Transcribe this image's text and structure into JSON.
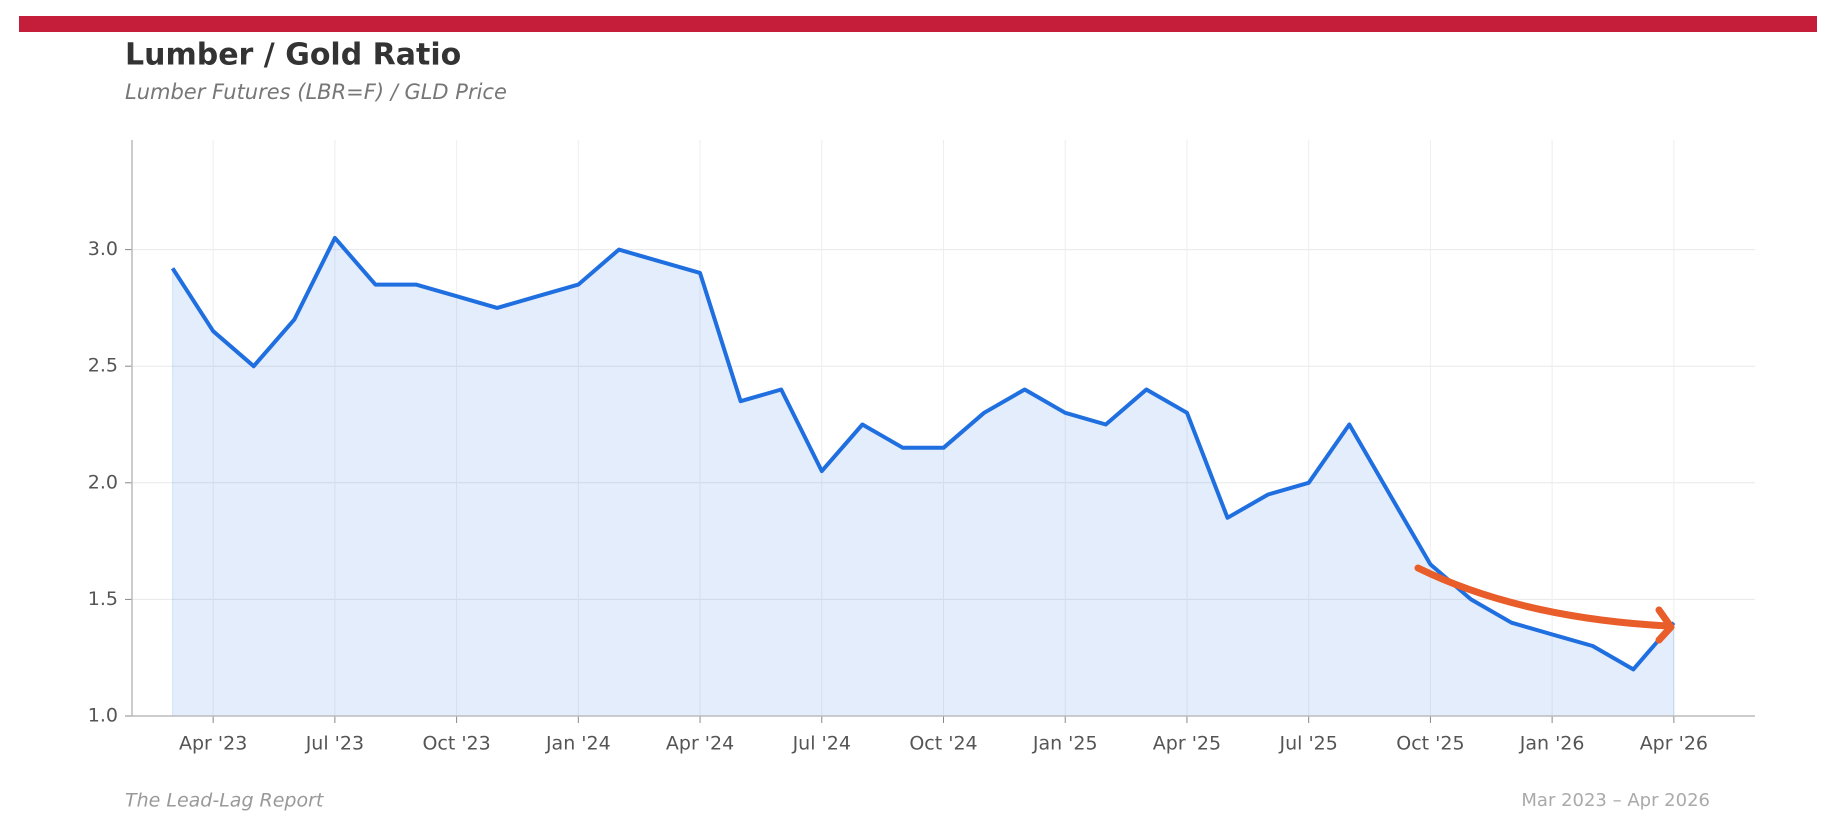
{
  "chart_data": {
    "type": "line",
    "title": "Lumber / Gold Ratio",
    "subtitle": "Lumber Futures (LBR=F) / GLD Price",
    "source": "The Lead-Lag Report",
    "date_range": "Mar 2023 – Apr 2026",
    "x": [
      "2023-03",
      "2023-04",
      "2023-05",
      "2023-06",
      "2023-07",
      "2023-08",
      "2023-09",
      "2023-10",
      "2023-11",
      "2023-12",
      "2024-01",
      "2024-02",
      "2024-03",
      "2024-04",
      "2024-05",
      "2024-06",
      "2024-07",
      "2024-08",
      "2024-09",
      "2024-10",
      "2024-11",
      "2024-12",
      "2025-01",
      "2025-02",
      "2025-03",
      "2025-04",
      "2025-05",
      "2025-06",
      "2025-07",
      "2025-08",
      "2025-09",
      "2025-10",
      "2025-11",
      "2025-12",
      "2026-01",
      "2026-02",
      "2026-03",
      "2026-04"
    ],
    "series": [
      {
        "name": "Lumber / Gold Ratio",
        "color": "#1f6fe0",
        "values": [
          2.92,
          2.65,
          2.5,
          2.7,
          3.05,
          2.85,
          2.85,
          2.8,
          2.75,
          2.8,
          2.85,
          3.0,
          2.95,
          2.9,
          2.35,
          2.4,
          2.05,
          2.25,
          2.15,
          2.15,
          2.3,
          2.4,
          2.3,
          2.25,
          2.4,
          2.3,
          1.85,
          1.95,
          2.0,
          2.25,
          1.95,
          1.65,
          1.5,
          1.4,
          1.35,
          1.3,
          1.2,
          1.4
        ]
      }
    ],
    "xlim": [
      "2023-02",
      "2026-06"
    ],
    "xticks": [
      {
        "value": "2023-04",
        "label": "Apr '23"
      },
      {
        "value": "2023-07",
        "label": "Jul '23"
      },
      {
        "value": "2023-10",
        "label": "Oct '23"
      },
      {
        "value": "2024-01",
        "label": "Jan '24"
      },
      {
        "value": "2024-04",
        "label": "Apr '24"
      },
      {
        "value": "2024-07",
        "label": "Jul '24"
      },
      {
        "value": "2024-10",
        "label": "Oct '24"
      },
      {
        "value": "2025-01",
        "label": "Jan '25"
      },
      {
        "value": "2025-04",
        "label": "Apr '25"
      },
      {
        "value": "2025-07",
        "label": "Jul '25"
      },
      {
        "value": "2025-10",
        "label": "Oct '25"
      },
      {
        "value": "2026-01",
        "label": "Jan '26"
      },
      {
        "value": "2026-04",
        "label": "Apr '26"
      }
    ],
    "ylim": [
      1.0,
      3.47
    ],
    "yticks": [
      {
        "value": 1,
        "label": "1.0"
      },
      1.5,
      {
        "value": 2,
        "label": "2.0"
      },
      2.5,
      {
        "value": 3,
        "label": "3.0"
      }
    ],
    "grid": true
  }
}
